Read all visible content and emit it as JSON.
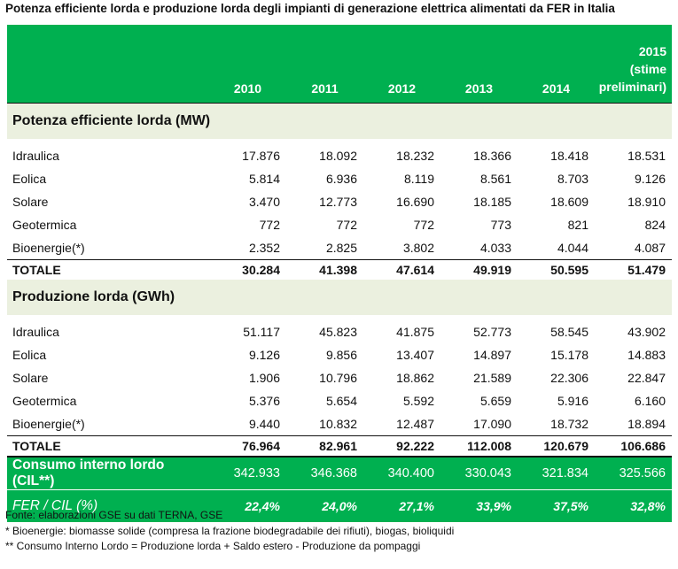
{
  "title": "Potenza efficiente lorda e produzione lorda degli impianti di generazione elettrica alimentati da FER in Italia",
  "header": {
    "years": [
      "2010",
      "2011",
      "2012",
      "2013",
      "2014"
    ],
    "last_year_lines": [
      "2015",
      "(stime",
      "preliminari)"
    ]
  },
  "section_potenza": {
    "title": "Potenza efficiente lorda (MW)",
    "rows": [
      {
        "label": "Idraulica",
        "values": [
          "17.876",
          "18.092",
          "18.232",
          "18.366",
          "18.418",
          "18.531"
        ]
      },
      {
        "label": "Eolica",
        "values": [
          "5.814",
          "6.936",
          "8.119",
          "8.561",
          "8.703",
          "9.126"
        ]
      },
      {
        "label": "Solare",
        "values": [
          "3.470",
          "12.773",
          "16.690",
          "18.185",
          "18.609",
          "18.910"
        ]
      },
      {
        "label": "Geotermica",
        "values": [
          "772",
          "772",
          "772",
          "773",
          "821",
          "824"
        ]
      },
      {
        "label": "Bioenergie(*)",
        "values": [
          "2.352",
          "2.825",
          "3.802",
          "4.033",
          "4.044",
          "4.087"
        ]
      }
    ],
    "total": {
      "label": "TOTALE",
      "values": [
        "30.284",
        "41.398",
        "47.614",
        "49.919",
        "50.595",
        "51.479"
      ]
    }
  },
  "section_produzione": {
    "title": "Produzione lorda (GWh)",
    "rows": [
      {
        "label": "Idraulica",
        "values": [
          "51.117",
          "45.823",
          "41.875",
          "52.773",
          "58.545",
          "43.902"
        ]
      },
      {
        "label": "Eolica",
        "values": [
          "9.126",
          "9.856",
          "13.407",
          "14.897",
          "15.178",
          "14.883"
        ]
      },
      {
        "label": "Solare",
        "values": [
          "1.906",
          "10.796",
          "18.862",
          "21.589",
          "22.306",
          "22.847"
        ]
      },
      {
        "label": "Geotermica",
        "values": [
          "5.376",
          "5.654",
          "5.592",
          "5.659",
          "5.916",
          "6.160"
        ]
      },
      {
        "label": "Bioenergie(*)",
        "values": [
          "9.440",
          "10.832",
          "12.487",
          "17.090",
          "18.732",
          "18.894"
        ]
      }
    ],
    "total": {
      "label": "TOTALE",
      "values": [
        "76.964",
        "82.961",
        "92.222",
        "112.008",
        "120.679",
        "106.686"
      ]
    }
  },
  "cil": {
    "label": "Consumo interno lordo (CIL**)",
    "values": [
      "342.933",
      "346.368",
      "340.400",
      "330.043",
      "321.834",
      "325.566"
    ]
  },
  "fer_cil": {
    "label": "FER / CIL (%)",
    "values": [
      "22,4%",
      "24,0%",
      "27,1%",
      "33,9%",
      "37,5%",
      "32,8%"
    ]
  },
  "notes": [
    "Fonte: elaborazioni GSE su dati TERNA, GSE",
    "* Bioenergie: biomasse solide (compresa la frazione biodegradabile dei rifiuti), biogas, bioliquidi",
    "** Consumo Interno Lordo = Produzione lorda + Saldo estero - Produzione da pompaggi"
  ],
  "colors": {
    "accent_green": "#00b050",
    "section_band": "#ebf0df"
  }
}
